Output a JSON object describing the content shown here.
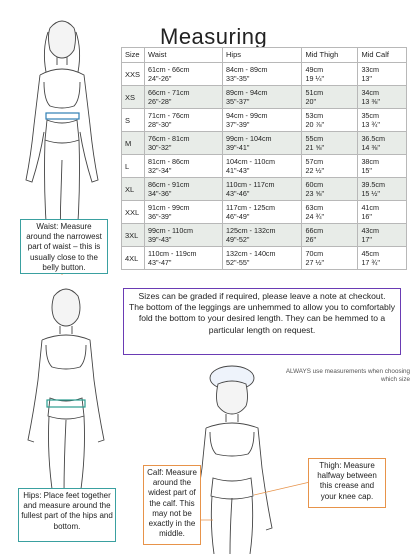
{
  "title": "Measuring",
  "table": {
    "headers": [
      "Size",
      "Waist",
      "Hips",
      "Mid Thigh",
      "Mid Calf"
    ],
    "rows": [
      {
        "size": "XXS",
        "waist": [
          "61cm - 66cm",
          "24\"-26\""
        ],
        "hips": [
          "84cm - 89cm",
          "33\"-35\""
        ],
        "thigh": [
          "49cm",
          "19 ¼\""
        ],
        "calf": [
          "33cm",
          "13\""
        ]
      },
      {
        "size": "XS",
        "waist": [
          "66cm - 71cm",
          "26\"-28\""
        ],
        "hips": [
          "89cm - 94cm",
          "35\"-37\""
        ],
        "thigh": [
          "51cm",
          "20\""
        ],
        "calf": [
          "34cm",
          "13 ⅜\""
        ]
      },
      {
        "size": "S",
        "waist": [
          "71cm - 76cm",
          "28\"-30\""
        ],
        "hips": [
          "94cm - 99cm",
          "37\"-39\""
        ],
        "thigh": [
          "53cm",
          "20 ⅞\""
        ],
        "calf": [
          "35cm",
          "13 ¾\""
        ]
      },
      {
        "size": "M",
        "waist": [
          "76cm - 81cm",
          "30\"-32\""
        ],
        "hips": [
          "99cm - 104cm",
          "39\"-41\""
        ],
        "thigh": [
          "55cm",
          "21 ⅝\""
        ],
        "calf": [
          "36.5cm",
          "14 ⅜\""
        ]
      },
      {
        "size": "L",
        "waist": [
          "81cm - 86cm",
          "32\"-34\""
        ],
        "hips": [
          "104cm - 110cm",
          "41\"-43\""
        ],
        "thigh": [
          "57cm",
          "22 ½\""
        ],
        "calf": [
          "38cm",
          "15\""
        ]
      },
      {
        "size": "XL",
        "waist": [
          "86cm - 91cm",
          "34\"-36\""
        ],
        "hips": [
          "110cm - 117cm",
          "43\"-46\""
        ],
        "thigh": [
          "60cm",
          "23 ⅝\""
        ],
        "calf": [
          "39.5cm",
          "15 ½\""
        ]
      },
      {
        "size": "XXL",
        "waist": [
          "91cm - 99cm",
          "36\"-39\""
        ],
        "hips": [
          "117cm - 125cm",
          "46\"-49\""
        ],
        "thigh": [
          "63cm",
          "24 ¾\""
        ],
        "calf": [
          "41cm",
          "16\""
        ]
      },
      {
        "size": "3XL",
        "waist": [
          "99cm - 110cm",
          "39\"-43\""
        ],
        "hips": [
          "125cm - 132cm",
          "49\"-52\""
        ],
        "thigh": [
          "66cm",
          "26\""
        ],
        "calf": [
          "43cm",
          "17\""
        ]
      },
      {
        "size": "4XL",
        "waist": [
          "110cm - 119cm",
          "43\"-47\""
        ],
        "hips": [
          "132cm - 140cm",
          "52\"-55\""
        ],
        "thigh": [
          "70cm",
          "27 ½\""
        ],
        "calf": [
          "45cm",
          "17 ¾\""
        ]
      }
    ]
  },
  "note": {
    "line1": "Sizes can be graded if required,  please leave a note at checkout.",
    "line2": "The bottom of the leggings are unhemmed to allow you to comfortably fold the bottom to your desired length. They can be hemmed to a particular length on request."
  },
  "callouts": {
    "waist": "Waist: Measure around the narrowest part of waist – this is usually close to the belly button.",
    "hips": "Hips: Place feet together and measure around the fullest part of the hips and bottom.",
    "calf": "Calf: Measure around the widest part of the calf. This may not be exactly in the middle.",
    "thigh": "Thigh: Measure halfway between this crease and your knee cap."
  },
  "always_note": "ALWAYS use measurements when choosing which size",
  "colors": {
    "note_border": "#6a3bb4",
    "callout_border": "#e7934a",
    "waist_band": "#2f7fb5",
    "hips_band": "#2a9d8f"
  }
}
